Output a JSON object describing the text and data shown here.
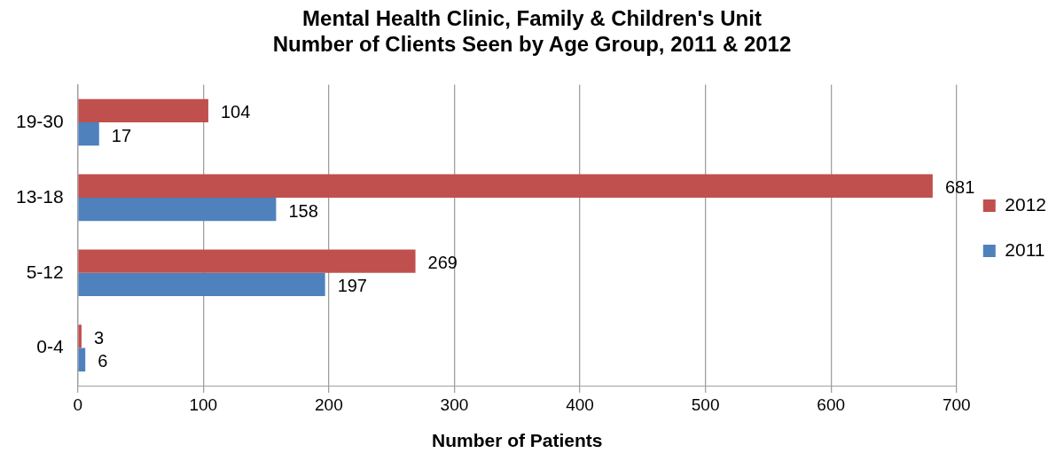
{
  "chart_data": {
    "type": "bar",
    "orientation": "horizontal",
    "title": "Mental Health Clinic, Family & Children's Unit\nNumber of Clients Seen by Age Group, 2011 & 2012",
    "xlabel": "Number of Patients",
    "categories": [
      "19-30",
      "13-18",
      "5-12",
      "0-4"
    ],
    "series": [
      {
        "name": "2012",
        "color": "#c0504d",
        "values": [
          104,
          681,
          269,
          3
        ]
      },
      {
        "name": "2011",
        "color": "#4f81bd",
        "values": [
          17,
          158,
          197,
          6
        ]
      }
    ],
    "xlim": [
      0,
      700
    ],
    "xticks": [
      0,
      100,
      200,
      300,
      400,
      500,
      600,
      700
    ],
    "grid": "x",
    "legend": "right",
    "data_labels": true
  }
}
